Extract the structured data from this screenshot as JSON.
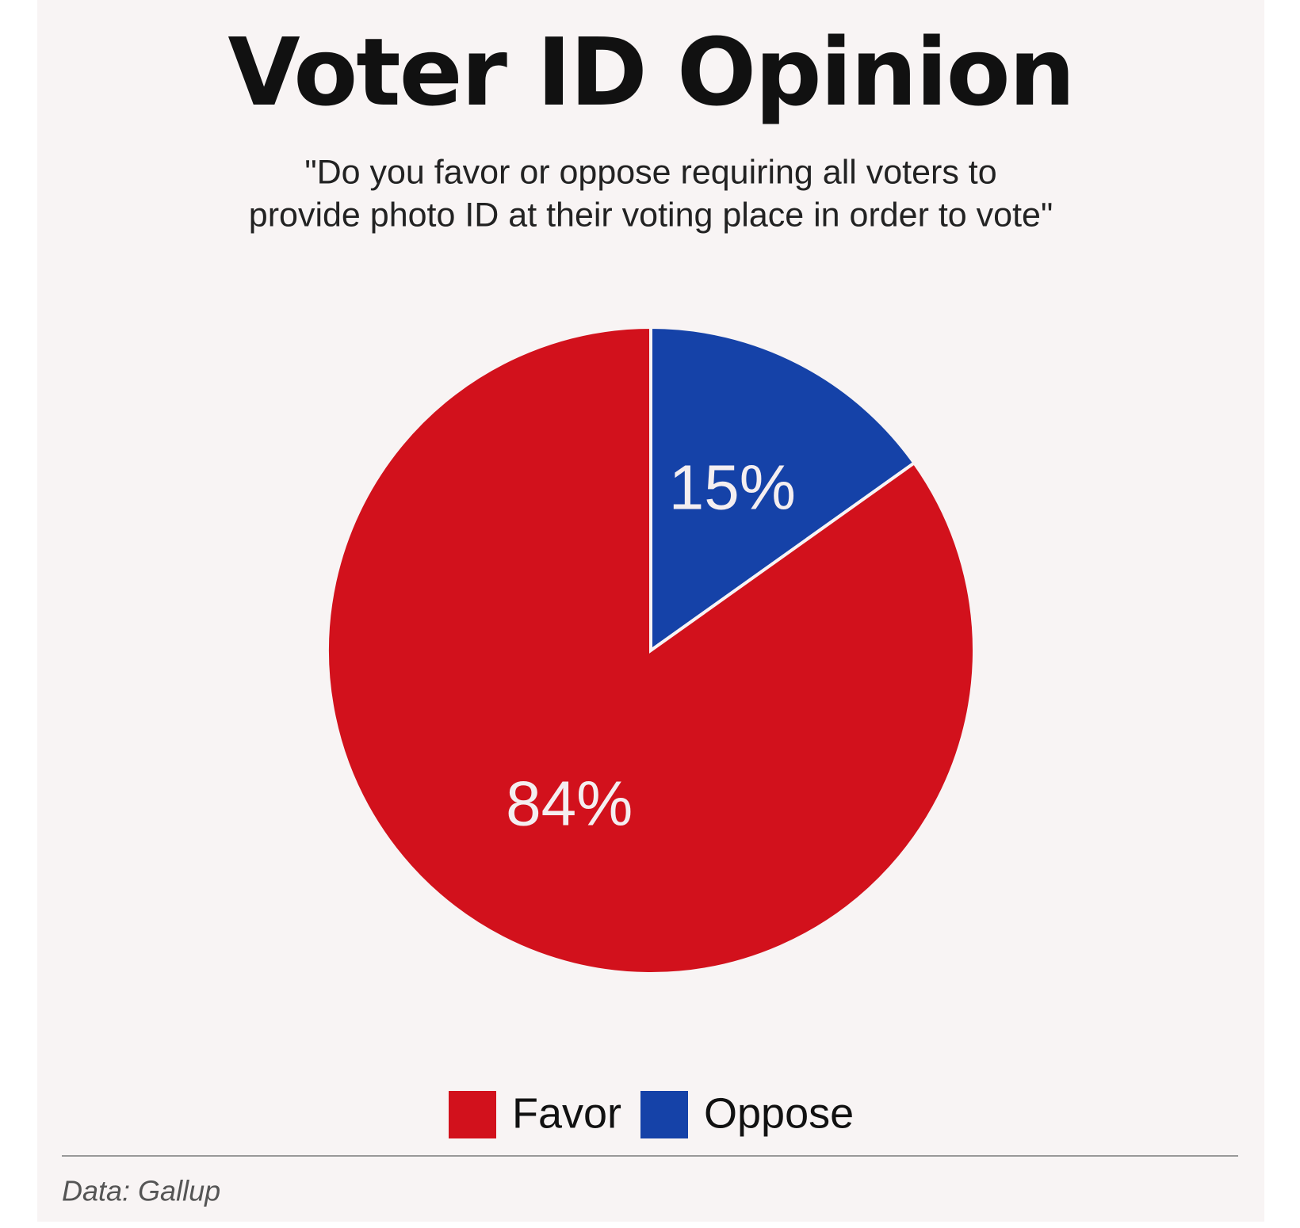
{
  "chart_data": {
    "type": "pie",
    "title": "Voter ID Opinion",
    "subtitle": [
      "\"Do you favor or oppose requiring all voters to",
      "provide photo ID at their voting place in order to vote\""
    ],
    "categories": [
      "Favor",
      "Oppose"
    ],
    "values": [
      84,
      15
    ],
    "value_labels": [
      "84%",
      "15%"
    ],
    "colors": [
      "#d2111c",
      "#1542a8"
    ],
    "source": "Data: Gallup"
  }
}
